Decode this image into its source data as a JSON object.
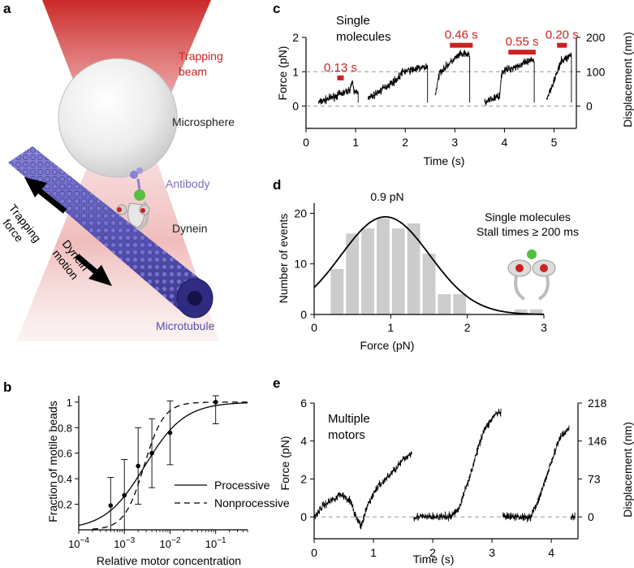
{
  "panels": {
    "a": {
      "letter": "a",
      "labels": {
        "trapping_beam": [
          "Trapping",
          "beam"
        ],
        "microsphere": "Microsphere",
        "antibody": "Antibody",
        "dynein": "Dynein",
        "trapping_force": [
          "Trapping",
          "force"
        ],
        "dynein_motion": [
          "Dynein",
          "motion"
        ],
        "microtubule": "Microtubule"
      },
      "colors": {
        "beam": "#d42a2a",
        "antibody_text": "#7b6fc0",
        "microtubule_text": "#5552a8",
        "microtubule": "#5a56b8"
      }
    },
    "b": {
      "letter": "b"
    },
    "c": {
      "letter": "c",
      "annotation": [
        "Single",
        "molecules"
      ]
    },
    "d": {
      "letter": "d",
      "annotation": [
        "Single molecules",
        "Stall times ≥ 200 ms"
      ],
      "peak_label": "0.9 pN"
    },
    "e": {
      "letter": "e",
      "annotation": [
        "Multiple",
        "motors"
      ]
    }
  },
  "colors": {
    "accent_red": "#cc2222",
    "bar_gray": "#cccccc",
    "dashed": "#999999",
    "trace": "#000000"
  },
  "chart_data": [
    {
      "id": "b",
      "type": "scatter",
      "xscale": "log",
      "xlabel": "Relative motor concentration",
      "ylabel": "Fraction of motile beads",
      "xlim": [
        0.0001,
        0.5
      ],
      "ylim": [
        0,
        1.05
      ],
      "xticks": [
        0.0001,
        0.001,
        0.01,
        0.1
      ],
      "xtick_labels": [
        [
          "10",
          "−4"
        ],
        [
          "10",
          "−3"
        ],
        [
          "10",
          "−2"
        ],
        [
          "10",
          "−1"
        ]
      ],
      "yticks": [
        0.2,
        0.4,
        0.6,
        0.8,
        1
      ],
      "ytick_labels": [
        "0.2",
        "0.4",
        "0.6",
        "0.8",
        "1"
      ],
      "points": [
        {
          "x": 0.0005,
          "y": 0.19,
          "err": 0.22
        },
        {
          "x": 0.001,
          "y": 0.27,
          "err": 0.28
        },
        {
          "x": 0.002,
          "y": 0.5,
          "err": 0.3
        },
        {
          "x": 0.004,
          "y": 0.6,
          "err": 0.27
        },
        {
          "x": 0.01,
          "y": 0.76,
          "err": 0.25
        },
        {
          "x": 0.1,
          "y": 1.0,
          "err": 0.17
        }
      ],
      "series": [
        {
          "name": "Processive",
          "dash": "solid",
          "x50": 0.0028,
          "n": 1.0
        },
        {
          "name": "Nonprocessive",
          "dash": "dashed",
          "x50": 0.0027,
          "n": 2.0
        }
      ]
    },
    {
      "id": "c",
      "type": "line",
      "xlabel": "Time (s)",
      "ylabel": "Force (pN)",
      "ylabel_right": "Displacement (nm)",
      "xlim": [
        0,
        5.45
      ],
      "ylim": [
        -0.65,
        2.0
      ],
      "xticks": [
        0,
        1,
        2,
        3,
        4,
        5
      ],
      "yticks": [
        0,
        1,
        2
      ],
      "yticks_right": [
        0,
        1,
        2
      ],
      "yticks_right_labels": [
        "0",
        "100",
        "200"
      ],
      "dashed_y": [
        0,
        1
      ],
      "events": [
        {
          "t0": 0.25,
          "t1": 1.05,
          "up": [
            [
              0,
              0.1
            ],
            [
              0.62,
              0.45
            ],
            [
              0.68,
              0.7
            ],
            [
              0.72,
              0.4
            ],
            [
              0.8,
              0.45
            ]
          ]
        },
        {
          "t0": 1.25,
          "t1": 2.45,
          "up": [
            [
              0,
              0.2
            ],
            [
              0.6,
              0.8
            ],
            [
              0.7,
              1.0
            ],
            [
              1.2,
              1.15
            ]
          ]
        },
        {
          "t0": 2.6,
          "t1": 3.3,
          "up": [
            [
              0,
              0.3
            ],
            [
              0.1,
              1.0
            ],
            [
              0.5,
              1.5
            ],
            [
              0.7,
              1.5
            ]
          ]
        },
        {
          "t0": 3.6,
          "t1": 4.6,
          "up": [
            [
              0,
              0.1
            ],
            [
              0.3,
              0.3
            ],
            [
              0.35,
              1.0
            ],
            [
              1.0,
              1.35
            ]
          ]
        },
        {
          "t0": 4.85,
          "t1": 5.35,
          "up": [
            [
              0,
              0.2
            ],
            [
              0.3,
              1.3
            ],
            [
              0.5,
              1.5
            ]
          ]
        }
      ],
      "stall_bars": [
        {
          "label": "0.13 s",
          "t0": 0.63,
          "t1": 0.76,
          "y": 0.82
        },
        {
          "label": "0.46 s",
          "t0": 2.9,
          "t1": 3.36,
          "y": 1.77
        },
        {
          "label": "0.55 s",
          "t0": 4.08,
          "t1": 4.63,
          "y": 1.57
        },
        {
          "label": "0.20 s",
          "t0": 5.06,
          "t1": 5.26,
          "y": 1.77
        }
      ]
    },
    {
      "id": "d",
      "type": "bar",
      "xlabel": "Force (pN)",
      "ylabel": "Number of events",
      "xlim": [
        0,
        3.0
      ],
      "ylim": [
        0,
        22
      ],
      "xticks": [
        0,
        1,
        2,
        3
      ],
      "yticks": [
        0,
        10,
        20
      ],
      "bin_width": 0.2,
      "bins": [
        {
          "center": 0.3,
          "count": 9
        },
        {
          "center": 0.5,
          "count": 16
        },
        {
          "center": 0.7,
          "count": 17
        },
        {
          "center": 0.9,
          "count": 19
        },
        {
          "center": 1.1,
          "count": 17
        },
        {
          "center": 1.3,
          "count": 18
        },
        {
          "center": 1.5,
          "count": 12
        },
        {
          "center": 1.7,
          "count": 4
        },
        {
          "center": 1.9,
          "count": 4
        },
        {
          "center": 2.1,
          "count": 0
        },
        {
          "center": 2.3,
          "count": 0
        },
        {
          "center": 2.5,
          "count": 0
        },
        {
          "center": 2.7,
          "count": 1
        },
        {
          "center": 2.9,
          "count": 1
        }
      ],
      "fit": {
        "type": "gaussian",
        "mean": 0.93,
        "sigma": 0.58,
        "amplitude": 19.3
      }
    },
    {
      "id": "e",
      "type": "line",
      "xlabel": "Time (s)",
      "ylabel": "Force (pN)",
      "ylabel_right": "Displacement (nm)",
      "xlim": [
        0,
        4.45
      ],
      "ylim": [
        -1.15,
        6.0
      ],
      "xticks": [
        0,
        1,
        2,
        3,
        4
      ],
      "yticks": [
        0,
        2,
        4,
        6
      ],
      "yticks_right": [
        0,
        2,
        4,
        6
      ],
      "yticks_right_labels": [
        "0",
        "73",
        "146",
        "218"
      ],
      "dashed_y": [
        0
      ],
      "segments": [
        [
          [
            0.0,
            0.0
          ],
          [
            0.15,
            0.6
          ],
          [
            0.45,
            1.2
          ],
          [
            0.6,
            0.9
          ],
          [
            0.72,
            -0.1
          ],
          [
            0.8,
            -0.5
          ],
          [
            0.9,
            0.6
          ],
          [
            1.05,
            1.5
          ],
          [
            1.3,
            2.3
          ],
          [
            1.5,
            3.0
          ],
          [
            1.65,
            3.4
          ]
        ],
        [
          [
            1.68,
            0.0
          ],
          [
            2.3,
            0.0
          ],
          [
            2.45,
            0.5
          ],
          [
            2.65,
            2.4
          ],
          [
            2.85,
            4.5
          ],
          [
            3.05,
            5.4
          ],
          [
            3.15,
            5.5
          ]
        ],
        [
          [
            3.18,
            0.0
          ],
          [
            3.65,
            0.0
          ],
          [
            3.8,
            1.0
          ],
          [
            4.0,
            2.9
          ],
          [
            4.15,
            4.2
          ],
          [
            4.3,
            4.7
          ]
        ],
        [
          [
            4.33,
            0.0
          ],
          [
            4.4,
            0.0
          ]
        ]
      ]
    }
  ]
}
